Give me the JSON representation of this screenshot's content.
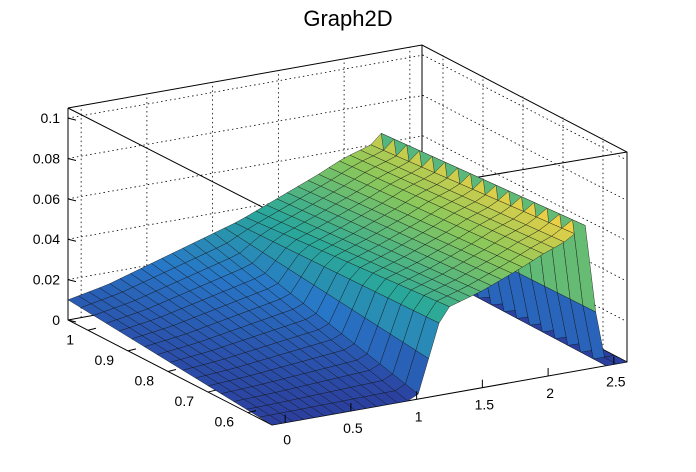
{
  "chart_data": {
    "type": "surface",
    "title": "Graph2D",
    "x_ticks": [
      "0",
      "0.5",
      "1",
      "1.5",
      "2",
      "2.5"
    ],
    "y_ticks": [
      "0.6",
      "0.7",
      "0.8",
      "0.9",
      "1"
    ],
    "z_ticks": [
      "0",
      "0.02",
      "0.04",
      "0.06",
      "0.08",
      "0.1"
    ],
    "xlim": [
      -0.1,
      2.6
    ],
    "ylim": [
      0.54,
      1.05
    ],
    "zlim": [
      0,
      0.105
    ],
    "grid": true,
    "colormap": "viridis-like (blue to yellow)",
    "surface_profile": {
      "x": [
        -0.1,
        0.2,
        0.5,
        0.8,
        1.0,
        1.2,
        1.5,
        1.8,
        2.0,
        2.1,
        2.2,
        2.3,
        2.4,
        2.6
      ],
      "z_at_y_max": [
        0.01,
        0.014,
        0.02,
        0.026,
        0.03,
        0.034,
        0.042,
        0.05,
        0.056,
        0.058,
        0.06,
        0.066,
        0.002,
        0.0
      ],
      "z_at_y_min": [
        0.0,
        0.0,
        0.0,
        0.0,
        0.0,
        0.042,
        0.048,
        0.056,
        0.062,
        0.064,
        0.068,
        0.072,
        0.0,
        0.0
      ]
    },
    "colors": {
      "low": "#2b3f9e",
      "mid": "#2aa89a",
      "high": "#f2d045"
    }
  }
}
